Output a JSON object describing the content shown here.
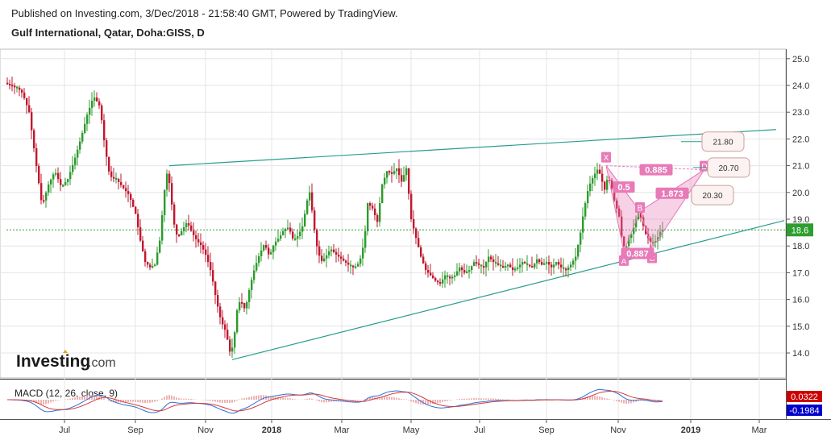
{
  "header": {
    "published": "Published on Investing.com, 3/Dec/2018 - 21:58:40 GMT, Powered by TradingView.",
    "instrument": "Gulf International, Qatar, Doha:GISS, D"
  },
  "branding": {
    "logo_main": "Investing",
    "logo_suffix": ".com"
  },
  "chart_data": {
    "type": "candlestick",
    "price_axis": {
      "ticks": [
        "25.0",
        "24.0",
        "23.0",
        "22.0",
        "21.0",
        "20.0",
        "19.0",
        "18.0",
        "17.0",
        "16.0",
        "15.0",
        "14.0"
      ],
      "ylim": [
        13.6,
        25.2
      ]
    },
    "time_axis": {
      "labels": [
        "Jul",
        "Sep",
        "Nov",
        "2018",
        "Mar",
        "May",
        "Jul",
        "Sep",
        "Nov",
        "2019",
        "Mar"
      ],
      "bold": [
        "2018",
        "2019"
      ]
    },
    "last_price": {
      "label": "18.6",
      "value": 18.6,
      "color": "#2e9e2e"
    },
    "price_path": [
      [
        0,
        24.1
      ],
      [
        8,
        24.0
      ],
      [
        16,
        23.9
      ],
      [
        22,
        23.7
      ],
      [
        30,
        23.0
      ],
      [
        38,
        21.2
      ],
      [
        46,
        19.5
      ],
      [
        54,
        20.3
      ],
      [
        62,
        20.8
      ],
      [
        70,
        20.2
      ],
      [
        78,
        20.5
      ],
      [
        86,
        21.2
      ],
      [
        94,
        22.0
      ],
      [
        102,
        22.9
      ],
      [
        110,
        23.6
      ],
      [
        118,
        23.2
      ],
      [
        124,
        21.7
      ],
      [
        130,
        20.6
      ],
      [
        138,
        20.5
      ],
      [
        146,
        20.2
      ],
      [
        154,
        19.9
      ],
      [
        162,
        19.2
      ],
      [
        168,
        18.2
      ],
      [
        174,
        17.4
      ],
      [
        180,
        17.2
      ],
      [
        186,
        17.3
      ],
      [
        192,
        18.2
      ],
      [
        198,
        20.1
      ],
      [
        202,
        20.9
      ],
      [
        206,
        19.8
      ],
      [
        210,
        18.8
      ],
      [
        214,
        18.3
      ],
      [
        220,
        18.6
      ],
      [
        226,
        18.9
      ],
      [
        232,
        18.5
      ],
      [
        238,
        18.2
      ],
      [
        244,
        18.0
      ],
      [
        250,
        17.6
      ],
      [
        256,
        17.0
      ],
      [
        262,
        16.0
      ],
      [
        268,
        15.2
      ],
      [
        274,
        14.8
      ],
      [
        280,
        13.9
      ],
      [
        284,
        14.5
      ],
      [
        288,
        15.6
      ],
      [
        292,
        16.0
      ],
      [
        298,
        15.6
      ],
      [
        304,
        16.5
      ],
      [
        310,
        17.2
      ],
      [
        316,
        17.7
      ],
      [
        322,
        18.1
      ],
      [
        328,
        17.6
      ],
      [
        334,
        18.1
      ],
      [
        340,
        18.3
      ],
      [
        346,
        18.6
      ],
      [
        352,
        18.7
      ],
      [
        358,
        18.2
      ],
      [
        364,
        18.4
      ],
      [
        370,
        18.8
      ],
      [
        374,
        19.6
      ],
      [
        378,
        20.0
      ],
      [
        382,
        19.1
      ],
      [
        386,
        18.1
      ],
      [
        392,
        17.4
      ],
      [
        398,
        17.6
      ],
      [
        404,
        17.9
      ],
      [
        410,
        17.7
      ],
      [
        418,
        17.5
      ],
      [
        426,
        17.3
      ],
      [
        434,
        17.2
      ],
      [
        440,
        17.4
      ],
      [
        446,
        18.2
      ],
      [
        450,
        19.6
      ],
      [
        456,
        19.4
      ],
      [
        462,
        18.9
      ],
      [
        468,
        20.3
      ],
      [
        474,
        20.8
      ],
      [
        480,
        20.7
      ],
      [
        486,
        20.9
      ],
      [
        492,
        20.4
      ],
      [
        498,
        20.9
      ],
      [
        504,
        19.0
      ],
      [
        510,
        18.3
      ],
      [
        516,
        17.6
      ],
      [
        522,
        17.1
      ],
      [
        528,
        16.9
      ],
      [
        534,
        16.7
      ],
      [
        540,
        16.6
      ],
      [
        546,
        16.9
      ],
      [
        552,
        16.8
      ],
      [
        558,
        16.9
      ],
      [
        564,
        17.2
      ],
      [
        570,
        17.0
      ],
      [
        576,
        17.1
      ],
      [
        582,
        17.4
      ],
      [
        588,
        17.3
      ],
      [
        594,
        17.2
      ],
      [
        600,
        17.6
      ],
      [
        606,
        17.4
      ],
      [
        612,
        17.3
      ],
      [
        618,
        17.2
      ],
      [
        624,
        17.3
      ],
      [
        630,
        17.1
      ],
      [
        636,
        17.2
      ],
      [
        642,
        17.4
      ],
      [
        648,
        17.3
      ],
      [
        654,
        17.2
      ],
      [
        660,
        17.5
      ],
      [
        666,
        17.3
      ],
      [
        672,
        17.4
      ],
      [
        678,
        17.2
      ],
      [
        684,
        17.4
      ],
      [
        690,
        17.2
      ],
      [
        696,
        17.1
      ],
      [
        702,
        17.3
      ],
      [
        708,
        17.6
      ],
      [
        714,
        18.5
      ],
      [
        718,
        19.3
      ],
      [
        724,
        20.2
      ],
      [
        730,
        20.6
      ],
      [
        736,
        20.9
      ],
      [
        740,
        20.5
      ],
      [
        744,
        20.1
      ],
      [
        748,
        20.6
      ],
      [
        752,
        20.3
      ],
      [
        756,
        19.7
      ],
      [
        762,
        19.1
      ],
      [
        766,
        18.1
      ],
      [
        770,
        17.9
      ],
      [
        774,
        18.3
      ],
      [
        778,
        18.5
      ],
      [
        782,
        18.9
      ],
      [
        786,
        19.3
      ],
      [
        790,
        19.0
      ],
      [
        794,
        18.5
      ],
      [
        798,
        18.3
      ],
      [
        802,
        18.1
      ],
      [
        808,
        18.2
      ],
      [
        814,
        18.6
      ]
    ],
    "trendlines": [
      {
        "name": "upper-channel",
        "from": [
          202,
          21.0
        ],
        "to": [
          955,
          22.35
        ]
      },
      {
        "name": "lower-channel",
        "from": [
          280,
          13.75
        ],
        "to": [
          965,
          18.95
        ]
      },
      {
        "name": "reference-line",
        "from": [
          0,
          18.6
        ],
        "to": [
          975,
          18.6
        ]
      }
    ],
    "harmonic_pattern": {
      "points": {
        "X": {
          "label": "X",
          "price": 21.0,
          "t": 744
        },
        "A": {
          "label": "A",
          "price": 17.8,
          "t": 766
        },
        "B": {
          "label": "B",
          "price": 19.3,
          "t": 786
        },
        "C": {
          "label": "C",
          "price": 17.9,
          "t": 801
        },
        "D": {
          "label": "D",
          "price": 20.85,
          "t": 866
        }
      },
      "ratios": [
        {
          "text": "0.885",
          "price": 20.85,
          "t": 806
        },
        {
          "text": "0.5",
          "price": 20.2,
          "t": 766
        },
        {
          "text": "1.873",
          "price": 19.97,
          "t": 826
        },
        {
          "text": "0.887",
          "price": 17.72,
          "t": 783
        }
      ],
      "targets": [
        {
          "text": "21.80",
          "price": 21.9
        },
        {
          "text": "20.70",
          "price": 20.93
        },
        {
          "text": "20.30",
          "price": 19.9
        }
      ],
      "color": "#e87ab8"
    },
    "macd": {
      "title": "MACD (12, 26, close, 9)",
      "macd_value": "0.0322",
      "signal_value": "-0.1984",
      "macd_color": "#cc0000",
      "signal_color": "#0000cc",
      "fast_line_color": "#2f6fd6",
      "signal_line_color": "#d23a3a"
    },
    "colors": {
      "up": "#2c9b2c",
      "down": "#c0172f",
      "grid": "#e4e4e4",
      "trend": "#2a9d8f"
    }
  }
}
